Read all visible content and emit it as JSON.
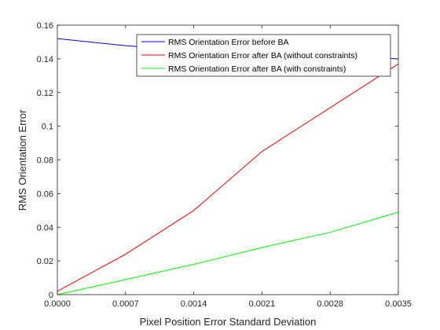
{
  "chart_data": {
    "type": "line",
    "title": "",
    "xlabel": "Pixel Position Error Standard Deviation",
    "ylabel": "RMS Orientation Error",
    "x": [
      0.0,
      0.0007,
      0.0014,
      0.0021,
      0.0028,
      0.0035
    ],
    "x_tick_labels": [
      "0.0000",
      "0.0007",
      "0.0014",
      "0.0021",
      "0.0028",
      "0.0035"
    ],
    "y_ticks": [
      0,
      0.02,
      0.04,
      0.06,
      0.08,
      0.1,
      0.12,
      0.14,
      0.16
    ],
    "y_tick_labels": [
      "0",
      "0.02",
      "0.04",
      "0.06",
      "0.08",
      "0.1",
      "0.12",
      "0.14",
      "0.16"
    ],
    "xlim": [
      0,
      0.0035
    ],
    "ylim": [
      0,
      0.16
    ],
    "grid": false,
    "legend_position": "top-right",
    "series": [
      {
        "name": "RMS Orientation Error before BA",
        "color": "#0000ff",
        "values": [
          0.152,
          0.1478,
          0.1449,
          0.143,
          0.1417,
          0.14
        ]
      },
      {
        "name": "RMS Orientation Error after BA (without constraints)",
        "color": "#ff0000",
        "values": [
          0.002,
          0.024,
          0.05,
          0.085,
          0.111,
          0.137
        ]
      },
      {
        "name": "RMS Orientation Error after BA (with constraints)",
        "color": "#00ff00",
        "values": [
          0.0,
          0.009,
          0.018,
          0.028,
          0.037,
          0.049
        ]
      }
    ]
  }
}
